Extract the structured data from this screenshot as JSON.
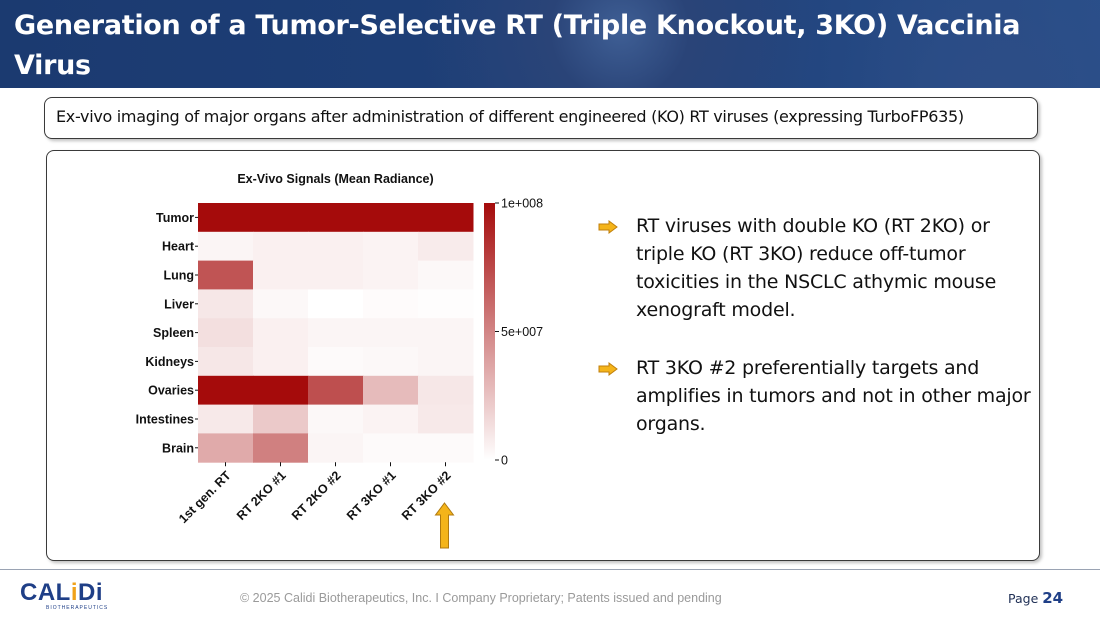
{
  "header": {
    "title": "Generation of a Tumor-Selective RT (Triple Knockout, 3KO)  Vaccinia Virus"
  },
  "subtitle": "Ex-vivo imaging of major organs after administration of different engineered (KO) RT viruses (expressing TurboFP635)",
  "chart_data": {
    "type": "heatmap",
    "title": "Ex-Vivo Signals (Mean Radiance)",
    "rows": [
      "Tumor",
      "Heart",
      "Lung",
      "Liver",
      "Spleen",
      "Kidneys",
      "Ovaries",
      "Intestines",
      "Brain"
    ],
    "columns": [
      "1st gen. RT",
      "RT 2KO #1",
      "RT 2KO #2",
      "RT 3KO #1",
      "RT 3KO #2"
    ],
    "values": [
      [
        100000000,
        100000000,
        100000000,
        100000000,
        100000000
      ],
      [
        4000000,
        6000000,
        6000000,
        5000000,
        8000000
      ],
      [
        70000000,
        6000000,
        6000000,
        5000000,
        3000000
      ],
      [
        10000000,
        3000000,
        0,
        1500000,
        1000000
      ],
      [
        13000000,
        6000000,
        4000000,
        4000000,
        4000000
      ],
      [
        10000000,
        6000000,
        2000000,
        3000000,
        4000000
      ],
      [
        100000000,
        100000000,
        72000000,
        28000000,
        10000000
      ],
      [
        9000000,
        22000000,
        3000000,
        5000000,
        9000000
      ],
      [
        35000000,
        52000000,
        4000000,
        2000000,
        2000000
      ]
    ],
    "colorbar": {
      "ticks": [
        "1e+008",
        "5e+007",
        "0"
      ],
      "range": [
        0,
        100000000
      ],
      "low_color": "#ffffff",
      "high_color": "#a50b0b"
    },
    "highlight_column": "RT 3KO #2",
    "highlight_color": "#f4b41a"
  },
  "bullets": [
    "RT viruses with double KO (RT 2KO) or triple KO (RT 3KO) reduce off-tumor toxicities in the NSCLC athymic mouse xenograft model.",
    "RT 3KO #2 preferentially targets and amplifies in tumors and not in other major organs."
  ],
  "bullet_icon": "right-arrow-icon",
  "accent_color": "#f4b41a",
  "footer": {
    "logo_text": "CALiDi",
    "logo_subtext": "BIOTHERAPEUTICS",
    "copyright": "© 2025 Calidi Biotherapeutics, Inc. I  Company Proprietary; Patents issued and pending",
    "page_label": "Page",
    "page_number": "24"
  }
}
